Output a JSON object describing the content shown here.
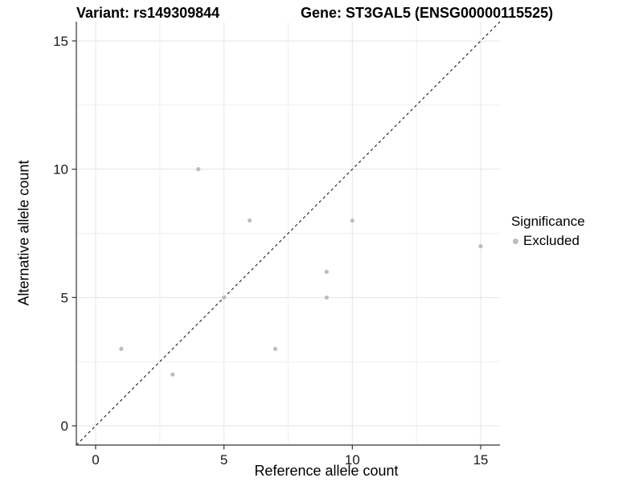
{
  "titles": {
    "variant": "Variant: rs149309844",
    "gene": "Gene: ST3GAL5 (ENSG00000115525)"
  },
  "chart_data": {
    "type": "scatter",
    "xlabel": "Reference allele count",
    "ylabel": "Alternative allele count",
    "xlim": [
      -0.75,
      15.75
    ],
    "ylim": [
      -0.75,
      15.75
    ],
    "x_major_ticks": [
      0,
      5,
      10,
      15
    ],
    "y_major_ticks": [
      0,
      5,
      10,
      15
    ],
    "x_minor_ticks": [
      2.5,
      7.5,
      12.5
    ],
    "y_minor_ticks": [
      2.5,
      7.5,
      12.5
    ],
    "grid": true,
    "identity_line": {
      "type": "dashed",
      "slope": 1,
      "intercept": 0,
      "color": "#1a1a1a"
    },
    "series": [
      {
        "name": "Excluded",
        "color": "#bdbdbd",
        "points": [
          {
            "x": 1,
            "y": 3
          },
          {
            "x": 3,
            "y": 2
          },
          {
            "x": 4,
            "y": 10
          },
          {
            "x": 5,
            "y": 5
          },
          {
            "x": 6,
            "y": 8
          },
          {
            "x": 7,
            "y": 3
          },
          {
            "x": 9,
            "y": 5
          },
          {
            "x": 9,
            "y": 6
          },
          {
            "x": 10,
            "y": 8
          },
          {
            "x": 15,
            "y": 7
          }
        ]
      }
    ],
    "legend": {
      "title": "Significance",
      "position": "right",
      "items": [
        {
          "label": "Excluded",
          "color": "#bdbdbd"
        }
      ]
    }
  },
  "colors": {
    "background": "#ffffff",
    "grid_major": "#e5e5e5",
    "grid_minor": "#f0f0f0",
    "axis_line": "#333333",
    "tick_text": "#1a1a1a",
    "point": "#bdbdbd"
  }
}
